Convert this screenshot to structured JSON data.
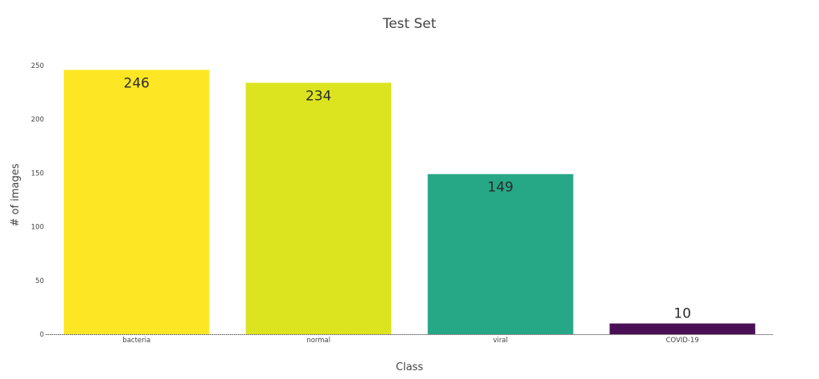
{
  "chart_data": {
    "type": "bar",
    "title": "Test Set",
    "xlabel": "Class",
    "ylabel": "# of images",
    "categories": [
      "bacteria",
      "normal",
      "viral",
      "COVID-19"
    ],
    "values": [
      246,
      234,
      149,
      10
    ],
    "data_labels": [
      "246",
      "234",
      "149",
      "10"
    ],
    "bar_colors": [
      "#fde725",
      "#dce41f",
      "#26a887",
      "#4b0f55"
    ],
    "yticks": [
      0,
      50,
      100,
      150,
      200,
      250
    ],
    "ytick_labels": [
      "0",
      "50",
      "100",
      "150",
      "200",
      "250"
    ],
    "ylim": [
      0,
      250
    ],
    "grid": false,
    "legend": "none"
  }
}
